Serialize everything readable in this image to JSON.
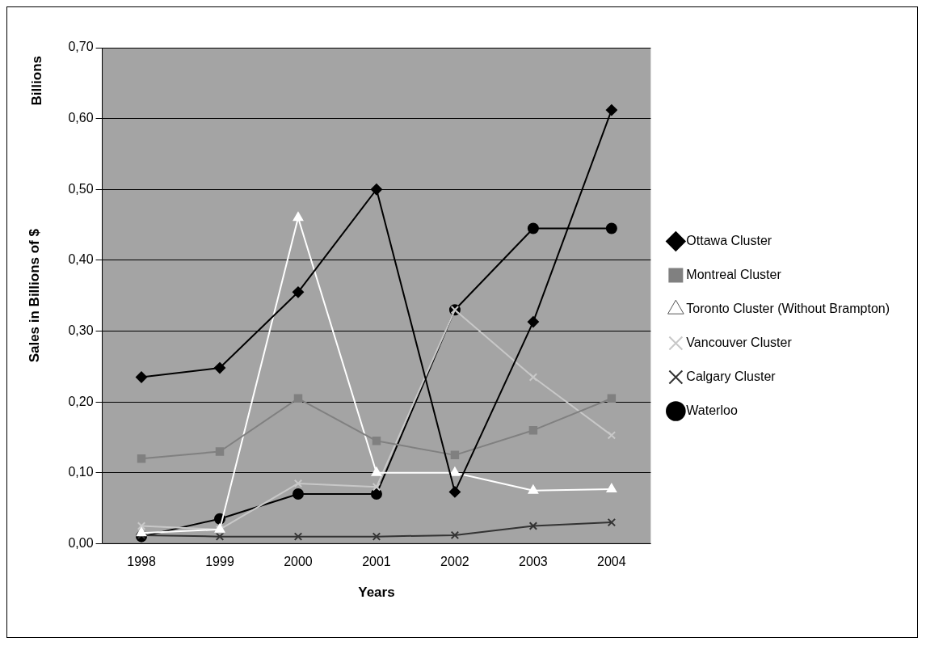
{
  "chart_data": {
    "type": "line",
    "xlabel": "Years",
    "ylabel": "Sales in Billions of $",
    "annotations": [
      "Billions"
    ],
    "categories": [
      "1998",
      "1999",
      "2000",
      "2001",
      "2002",
      "2003",
      "2004"
    ],
    "series": [
      {
        "name": "Ottawa Cluster",
        "color": "#000000",
        "marker": "diamond",
        "values": [
          0.235,
          0.248,
          0.355,
          0.5,
          0.073,
          0.313,
          0.612
        ]
      },
      {
        "name": "Montreal Cluster",
        "color": "#808080",
        "marker": "square",
        "values": [
          0.12,
          0.13,
          0.205,
          0.145,
          0.125,
          0.16,
          0.205
        ]
      },
      {
        "name": "Toronto Cluster (Without Brampton)",
        "color": "#ffffff",
        "marker": "triangle",
        "values": [
          0.015,
          0.02,
          0.46,
          0.1,
          0.1,
          0.075,
          0.077
        ]
      },
      {
        "name": "Vancouver Cluster",
        "color": "#c8c8c8",
        "marker": "cross",
        "values": [
          0.025,
          0.02,
          0.085,
          0.08,
          0.33,
          0.235,
          0.153
        ]
      },
      {
        "name": "Calgary Cluster",
        "color": "#333333",
        "marker": "cross",
        "values": [
          0.012,
          0.01,
          0.01,
          0.01,
          0.012,
          0.025,
          0.03
        ]
      },
      {
        "name": "Waterloo",
        "color": "#000000",
        "marker": "circle",
        "values": [
          0.01,
          0.035,
          0.07,
          0.07,
          0.33,
          0.445,
          0.445
        ]
      }
    ],
    "ylim": [
      0,
      0.7
    ],
    "yticks": [
      {
        "value": 0,
        "label": "0,00"
      },
      {
        "value": 0.1,
        "label": "0,10"
      },
      {
        "value": 0.2,
        "label": "0,20"
      },
      {
        "value": 0.3,
        "label": "0,30"
      },
      {
        "value": 0.4,
        "label": "0,40"
      },
      {
        "value": 0.5,
        "label": "0,50"
      },
      {
        "value": 0.6,
        "label": "0,60"
      },
      {
        "value": 0.7,
        "label": "0,70"
      }
    ],
    "grid": "y",
    "legend": "right"
  }
}
